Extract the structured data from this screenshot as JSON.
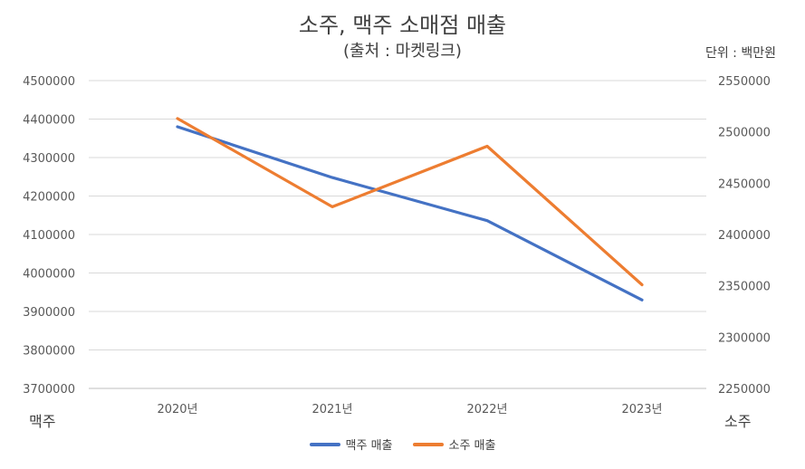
{
  "chart_data": {
    "type": "line",
    "title": "소주, 맥주 소매점 매출",
    "subtitle": "(출처 : 마켓링크)",
    "unit_label": "단위 : 백만원",
    "categories": [
      "2020년",
      "2021년",
      "2022년",
      "2023년"
    ],
    "series": [
      {
        "name": "맥주 매출",
        "axis": "left",
        "color": "#4472C4",
        "values": [
          4380000,
          4248000,
          4136000,
          3930000
        ]
      },
      {
        "name": "소주 매출",
        "axis": "right",
        "color": "#ED7D31",
        "values": [
          2513000,
          2427000,
          2486000,
          2351000
        ]
      }
    ],
    "left_axis": {
      "label": "맥주",
      "ylim": [
        3700000,
        4500000
      ],
      "ticks": [
        "4500000",
        "4400000",
        "4300000",
        "4200000",
        "4100000",
        "4000000",
        "3900000",
        "3800000",
        "3700000"
      ]
    },
    "right_axis": {
      "label": "소주",
      "ylim": [
        2250000,
        2550000
      ],
      "ticks": [
        "2550000",
        "2500000",
        "2450000",
        "2400000",
        "2350000",
        "2300000",
        "2250000"
      ]
    },
    "grid": true,
    "legend_position": "bottom"
  }
}
